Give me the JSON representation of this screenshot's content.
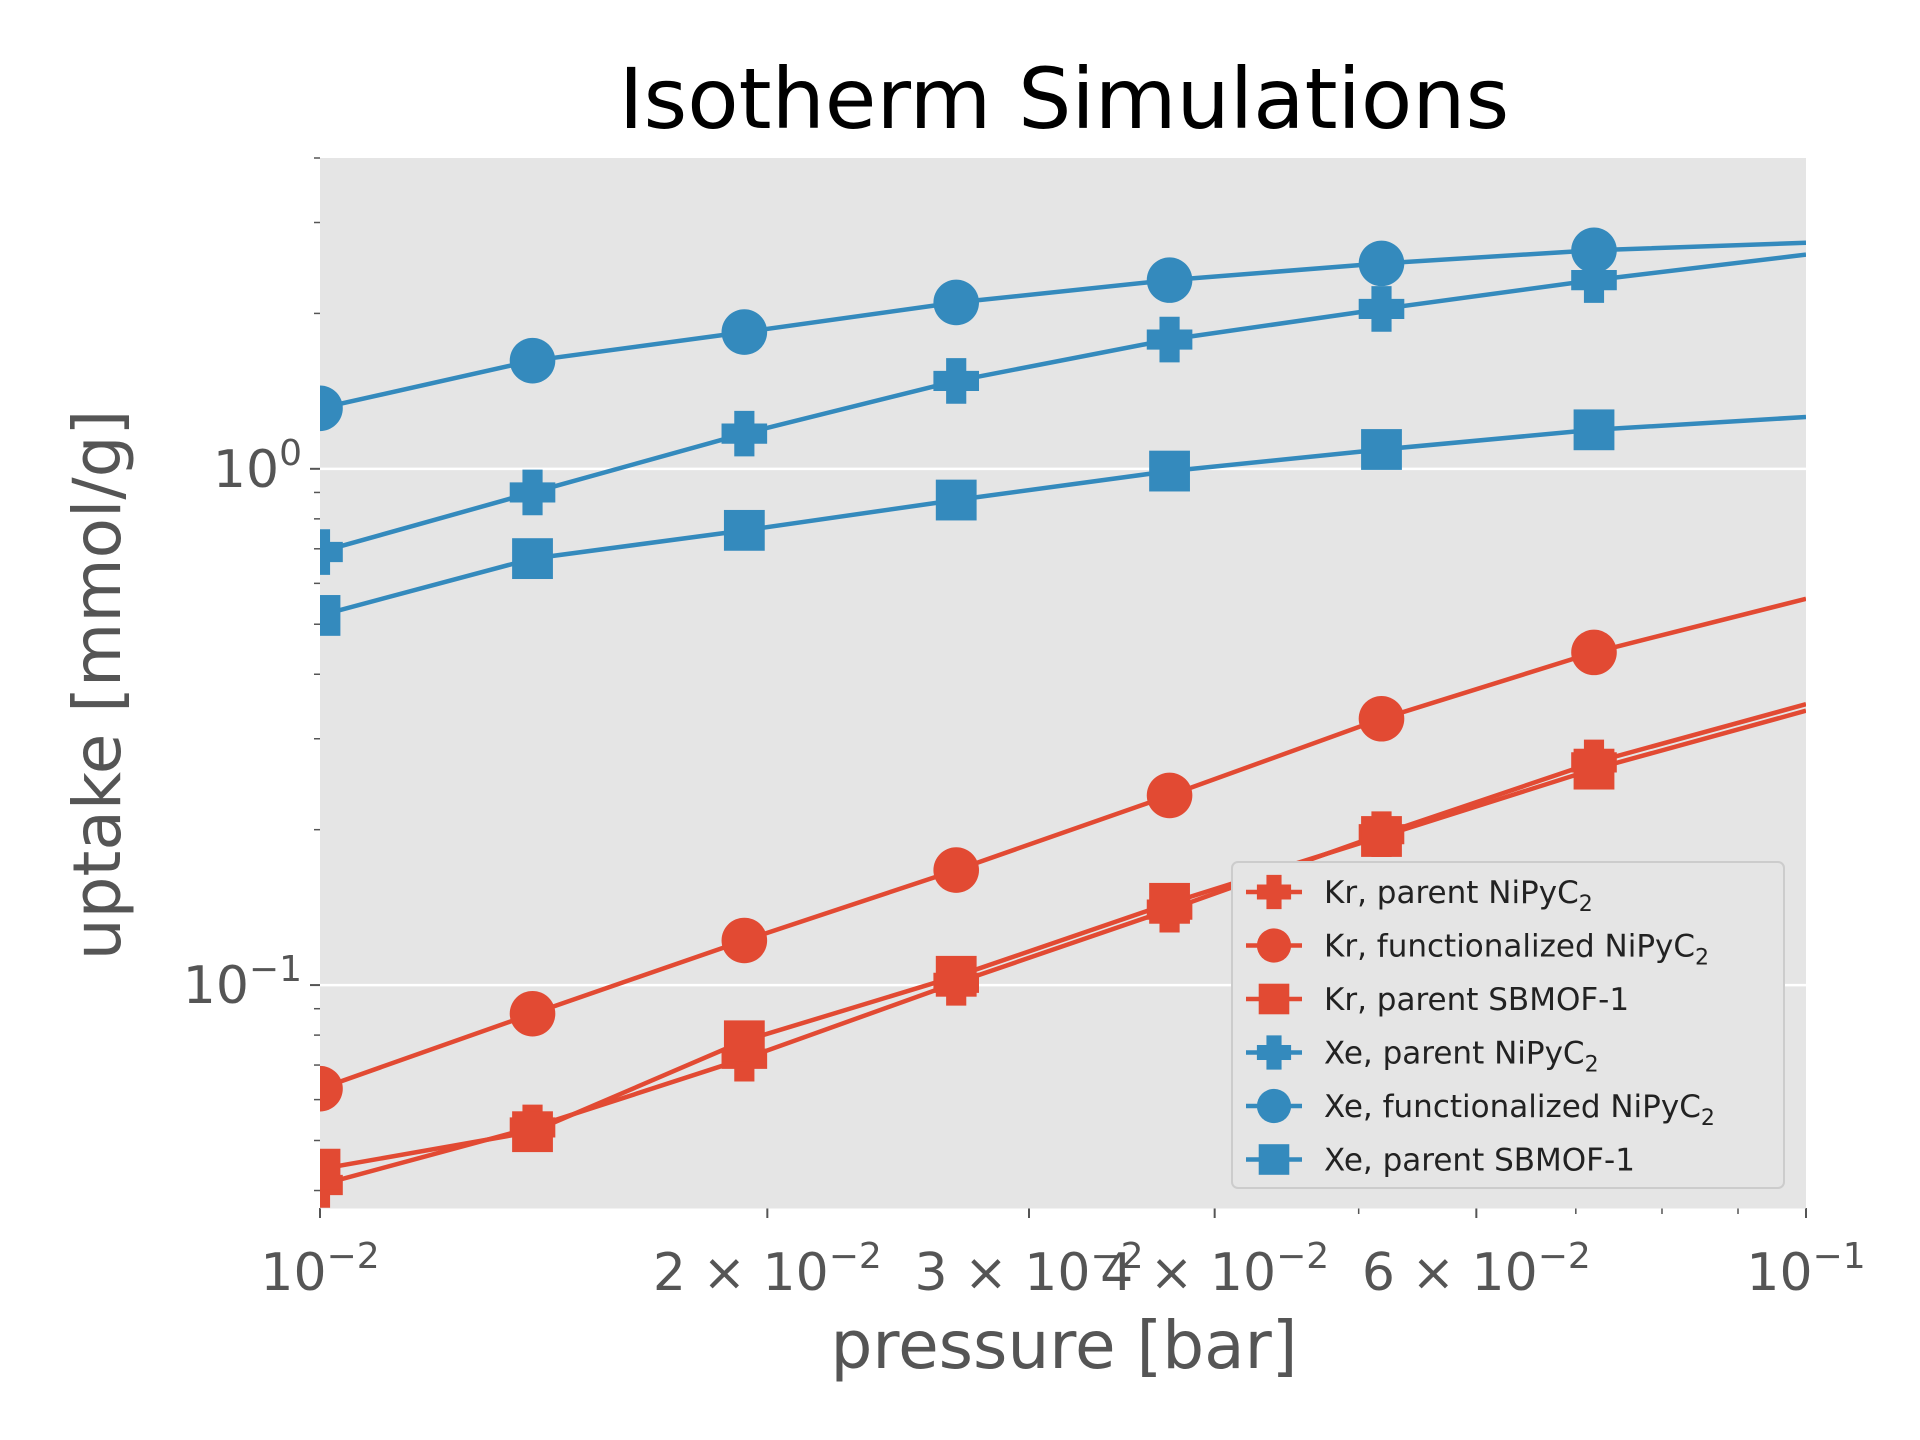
{
  "chart_data": {
    "type": "line",
    "title": "Isotherm Simulations",
    "xlabel": "pressure [bar]",
    "ylabel": "uptake [mmol/g]",
    "xscale": "log",
    "yscale": "log",
    "xlim": [
      0.01,
      0.1
    ],
    "ylim": [
      0.037,
      4.0
    ],
    "grid": "horizontal major lines",
    "legend_position": "lower-right",
    "colors": {
      "Kr": "#E24A33",
      "Xe": "#348ABD",
      "plot_background": "#E5E5E5",
      "grid": "#FFFFFF"
    },
    "x_ticks": [
      {
        "base": "10",
        "exp": "−2"
      },
      {
        "base": "2 × 10",
        "exp": "−2"
      },
      {
        "base": "3 × 10",
        "exp": "−2"
      },
      {
        "base": "4 × 10",
        "exp": "−2"
      },
      {
        "base": "6 × 10",
        "exp": "−2"
      },
      {
        "base": "10",
        "exp": "−1"
      }
    ],
    "y_ticks": [
      {
        "base": "10",
        "exp": "−1"
      },
      {
        "base": "10",
        "exp": "0"
      }
    ],
    "x": [
      0.01,
      0.0139,
      0.0193,
      0.0268,
      0.0373,
      0.0518,
      0.072,
      0.1
    ],
    "series": [
      {
        "name": "Kr, parent NiPyC",
        "sub": "2",
        "gas": "Kr",
        "marker": "plus",
        "values": [
          0.041,
          0.053,
          0.072,
          0.101,
          0.14,
          0.196,
          0.27,
          0.35
        ]
      },
      {
        "name": "Kr, functionalized NiPyC",
        "sub": "2",
        "gas": "Kr",
        "marker": "circle",
        "values": [
          0.063,
          0.088,
          0.122,
          0.167,
          0.233,
          0.328,
          0.441,
          0.56
        ]
      },
      {
        "name": "Kr, parent SBMOF-1",
        "sub": "",
        "gas": "Kr",
        "marker": "square",
        "values": [
          0.044,
          0.052,
          0.078,
          0.104,
          0.144,
          0.194,
          0.262,
          0.34
        ]
      },
      {
        "name": "Xe, parent NiPyC",
        "sub": "2",
        "gas": "Xe",
        "marker": "plus",
        "values": [
          0.69,
          0.9,
          1.17,
          1.48,
          1.78,
          2.04,
          2.32,
          2.6
        ]
      },
      {
        "name": "Xe, functionalized NiPyC",
        "sub": "2",
        "gas": "Xe",
        "marker": "circle",
        "values": [
          1.31,
          1.62,
          1.84,
          2.1,
          2.32,
          2.5,
          2.65,
          2.74
        ]
      },
      {
        "name": "Xe, parent SBMOF-1",
        "sub": "",
        "gas": "Xe",
        "marker": "square",
        "values": [
          0.52,
          0.67,
          0.76,
          0.87,
          0.99,
          1.09,
          1.19,
          1.26
        ]
      }
    ]
  }
}
